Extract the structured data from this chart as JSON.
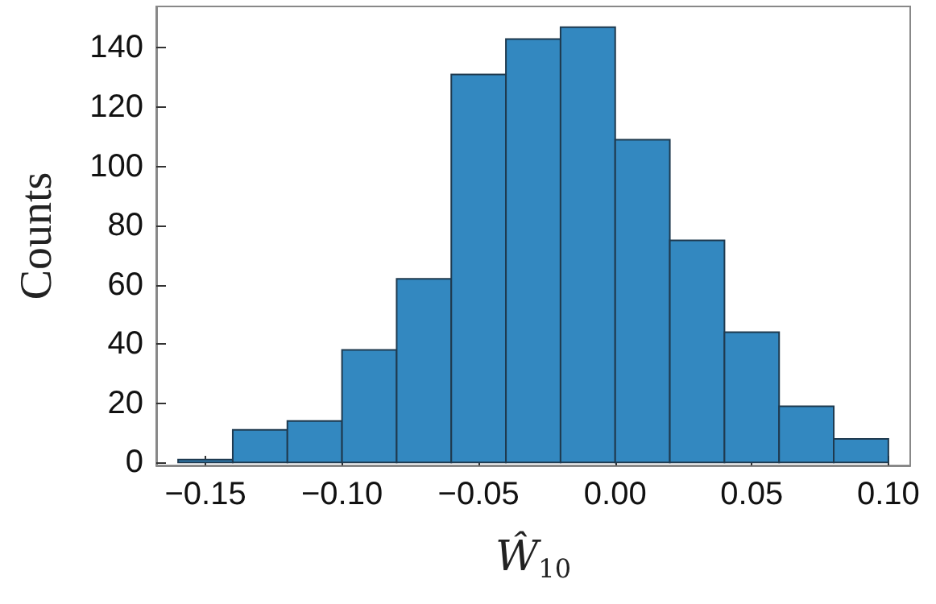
{
  "chart_data": {
    "type": "histogram",
    "xlabel": "Ŵ$_{10}$",
    "ylabel": "Counts",
    "bins": [
      -0.16,
      -0.14,
      -0.12,
      -0.1,
      -0.08,
      -0.06,
      -0.04,
      -0.02,
      0,
      0.02,
      0.04,
      0.06,
      0.08,
      0.1
    ],
    "values": [
      1,
      11,
      14,
      38,
      62,
      131,
      143,
      147,
      109,
      75,
      44,
      19,
      8
    ],
    "color": "#3388c0",
    "xlim": [
      -0.168,
      0.108
    ],
    "xticks": [
      {
        "value": -0.15,
        "label": "−0.15"
      },
      {
        "value": -0.1,
        "label": "−0.10"
      },
      {
        "value": -0.05,
        "label": "−0.05"
      },
      {
        "value": 0,
        "label": "0.00"
      },
      {
        "value": 0.05,
        "label": "0.05"
      },
      {
        "value": 0.1,
        "label": "0.10"
      }
    ],
    "ylim": [
      -1,
      154
    ],
    "yticks": [
      0,
      20,
      40,
      60,
      80,
      100,
      120,
      140
    ],
    "grid": false
  }
}
